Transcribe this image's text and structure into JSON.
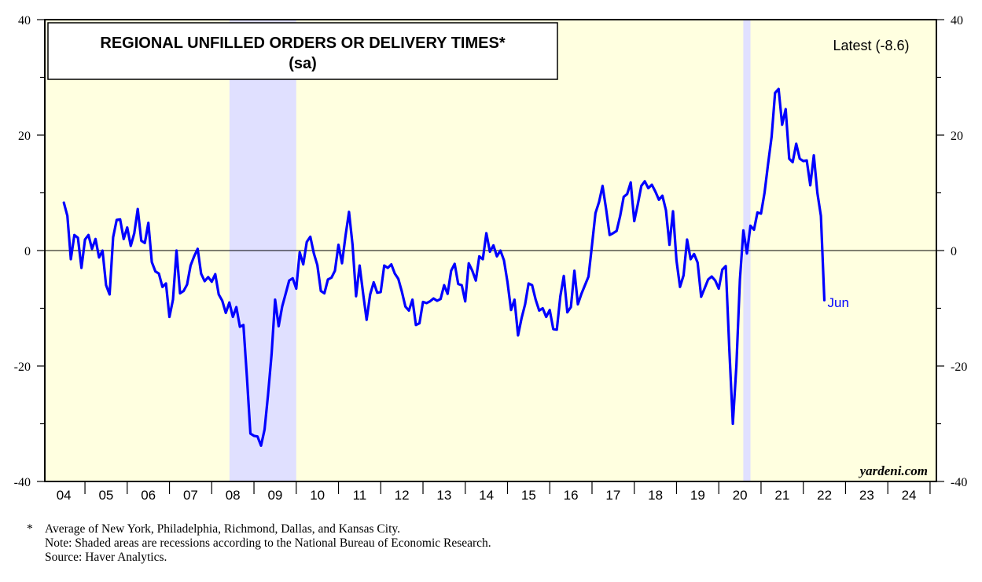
{
  "chart_data": {
    "type": "line",
    "title": "REGIONAL UNFILLED ORDERS OR DELIVERY TIMES*",
    "subtitle": "(sa)",
    "latest_label": "Latest (-8.6)",
    "end_label": "Jun",
    "watermark": "yardeni.com",
    "ylim": [
      -40,
      40
    ],
    "y_ticks": [
      -40,
      -20,
      0,
      20,
      40
    ],
    "y_tick_labels": [
      "-40",
      "-20",
      "0",
      "20",
      "40"
    ],
    "x_range": [
      2003.55,
      2024.65
    ],
    "year_labels": [
      {
        "year": 2004,
        "label": "04"
      },
      {
        "year": 2005,
        "label": "05"
      },
      {
        "year": 2006,
        "label": "06"
      },
      {
        "year": 2007,
        "label": "07"
      },
      {
        "year": 2008,
        "label": "08"
      },
      {
        "year": 2009,
        "label": "09"
      },
      {
        "year": 2010,
        "label": "10"
      },
      {
        "year": 2011,
        "label": "11"
      },
      {
        "year": 2012,
        "label": "12"
      },
      {
        "year": 2013,
        "label": "13"
      },
      {
        "year": 2014,
        "label": "14"
      },
      {
        "year": 2015,
        "label": "15"
      },
      {
        "year": 2016,
        "label": "16"
      },
      {
        "year": 2017,
        "label": "17"
      },
      {
        "year": 2018,
        "label": "18"
      },
      {
        "year": 2019,
        "label": "19"
      },
      {
        "year": 2020,
        "label": "20"
      },
      {
        "year": 2021,
        "label": "21"
      },
      {
        "year": 2022,
        "label": "22"
      },
      {
        "year": 2023,
        "label": "23"
      },
      {
        "year": 2024,
        "label": "24"
      }
    ],
    "recessions": [
      {
        "start": 2007.92,
        "end": 2009.5
      },
      {
        "start": 2020.08,
        "end": 2020.25
      }
    ],
    "series": [
      {
        "name": "Regional unfilled orders or delivery times",
        "color": "#0000ff",
        "start": 2004.0,
        "step": 0.08333,
        "values": [
          8.3,
          6.0,
          -1.5,
          2.7,
          2.2,
          -3.0,
          1.9,
          2.7,
          0.3,
          2.0,
          -1.2,
          0.0,
          -6.0,
          -7.6,
          2.3,
          5.3,
          5.4,
          2.0,
          4.0,
          0.8,
          3.0,
          7.2,
          1.7,
          1.3,
          4.8,
          -2.0,
          -3.6,
          -4.0,
          -6.3,
          -5.7,
          -11.5,
          -8.5,
          0.0,
          -7.4,
          -7.0,
          -5.9,
          -2.6,
          -1.0,
          0.3,
          -4.0,
          -5.3,
          -4.6,
          -5.4,
          -4.1,
          -7.6,
          -8.7,
          -10.8,
          -9.0,
          -11.5,
          -9.8,
          -13.2,
          -12.9,
          -22.0,
          -31.7,
          -32.1,
          -32.2,
          -33.8,
          -31.0,
          -25.0,
          -18.0,
          -8.5,
          -13.1,
          -9.7,
          -7.5,
          -5.2,
          -4.8,
          -6.6,
          -0.3,
          -2.4,
          1.5,
          2.4,
          -0.5,
          -2.5,
          -7.0,
          -7.4,
          -5.0,
          -4.7,
          -3.5,
          1.0,
          -2.2,
          2.6,
          6.7,
          1.0,
          -7.9,
          -2.6,
          -7.5,
          -12.0,
          -7.6,
          -5.5,
          -7.3,
          -7.2,
          -2.6,
          -3.0,
          -2.4,
          -4.0,
          -4.9,
          -7.1,
          -9.7,
          -10.4,
          -8.5,
          -12.9,
          -12.6,
          -8.9,
          -9.1,
          -8.8,
          -8.3,
          -8.7,
          -8.4,
          -6.0,
          -7.5,
          -3.5,
          -2.3,
          -5.8,
          -6.0,
          -8.8,
          -2.2,
          -3.5,
          -5.2,
          -1.0,
          -1.5,
          3.0,
          -0.2,
          0.9,
          -1.0,
          0.0,
          -1.7,
          -5.5,
          -10.3,
          -8.5,
          -14.7,
          -11.7,
          -9.3,
          -5.7,
          -6.0,
          -8.5,
          -10.4,
          -10.0,
          -11.5,
          -10.3,
          -13.6,
          -13.7,
          -7.9,
          -4.4,
          -10.7,
          -9.8,
          -3.5,
          -9.3,
          -7.5,
          -6.0,
          -4.5,
          1.0,
          6.5,
          8.4,
          11.2,
          7.2,
          2.7,
          3.0,
          3.4,
          6.0,
          9.3,
          9.8,
          11.8,
          5.1,
          8.0,
          11.2,
          12.0,
          10.8,
          11.4,
          10.2,
          8.8,
          9.5,
          7.0,
          1.0,
          6.8,
          -1.7,
          -6.3,
          -4.3,
          1.9,
          -1.5,
          -0.6,
          -2.1,
          -8.0,
          -6.5,
          -5.0,
          -4.5,
          -5.2,
          -6.6,
          -3.3,
          -2.7,
          -17.0,
          -30.0,
          -20.0,
          -5.0,
          3.5,
          -0.5,
          4.3,
          3.6,
          6.6,
          6.4,
          10.0,
          15.0,
          19.7,
          27.3,
          28.0,
          21.8,
          24.5,
          15.9,
          15.3,
          18.5,
          15.9,
          15.5,
          15.6,
          11.3,
          16.5,
          10.0,
          6.0,
          -8.6
        ]
      }
    ]
  },
  "footnotes": {
    "marker": "*",
    "lines": [
      "Average of New York, Philadelphia, Richmond, Dallas, and Kansas City.",
      "Note: Shaded areas are recessions according to the National Bureau of Economic Research.",
      "Source: Haver Analytics."
    ]
  },
  "colors": {
    "background": "#ffffe0",
    "recession": "#e0e0ff",
    "line": "#0000ff"
  }
}
